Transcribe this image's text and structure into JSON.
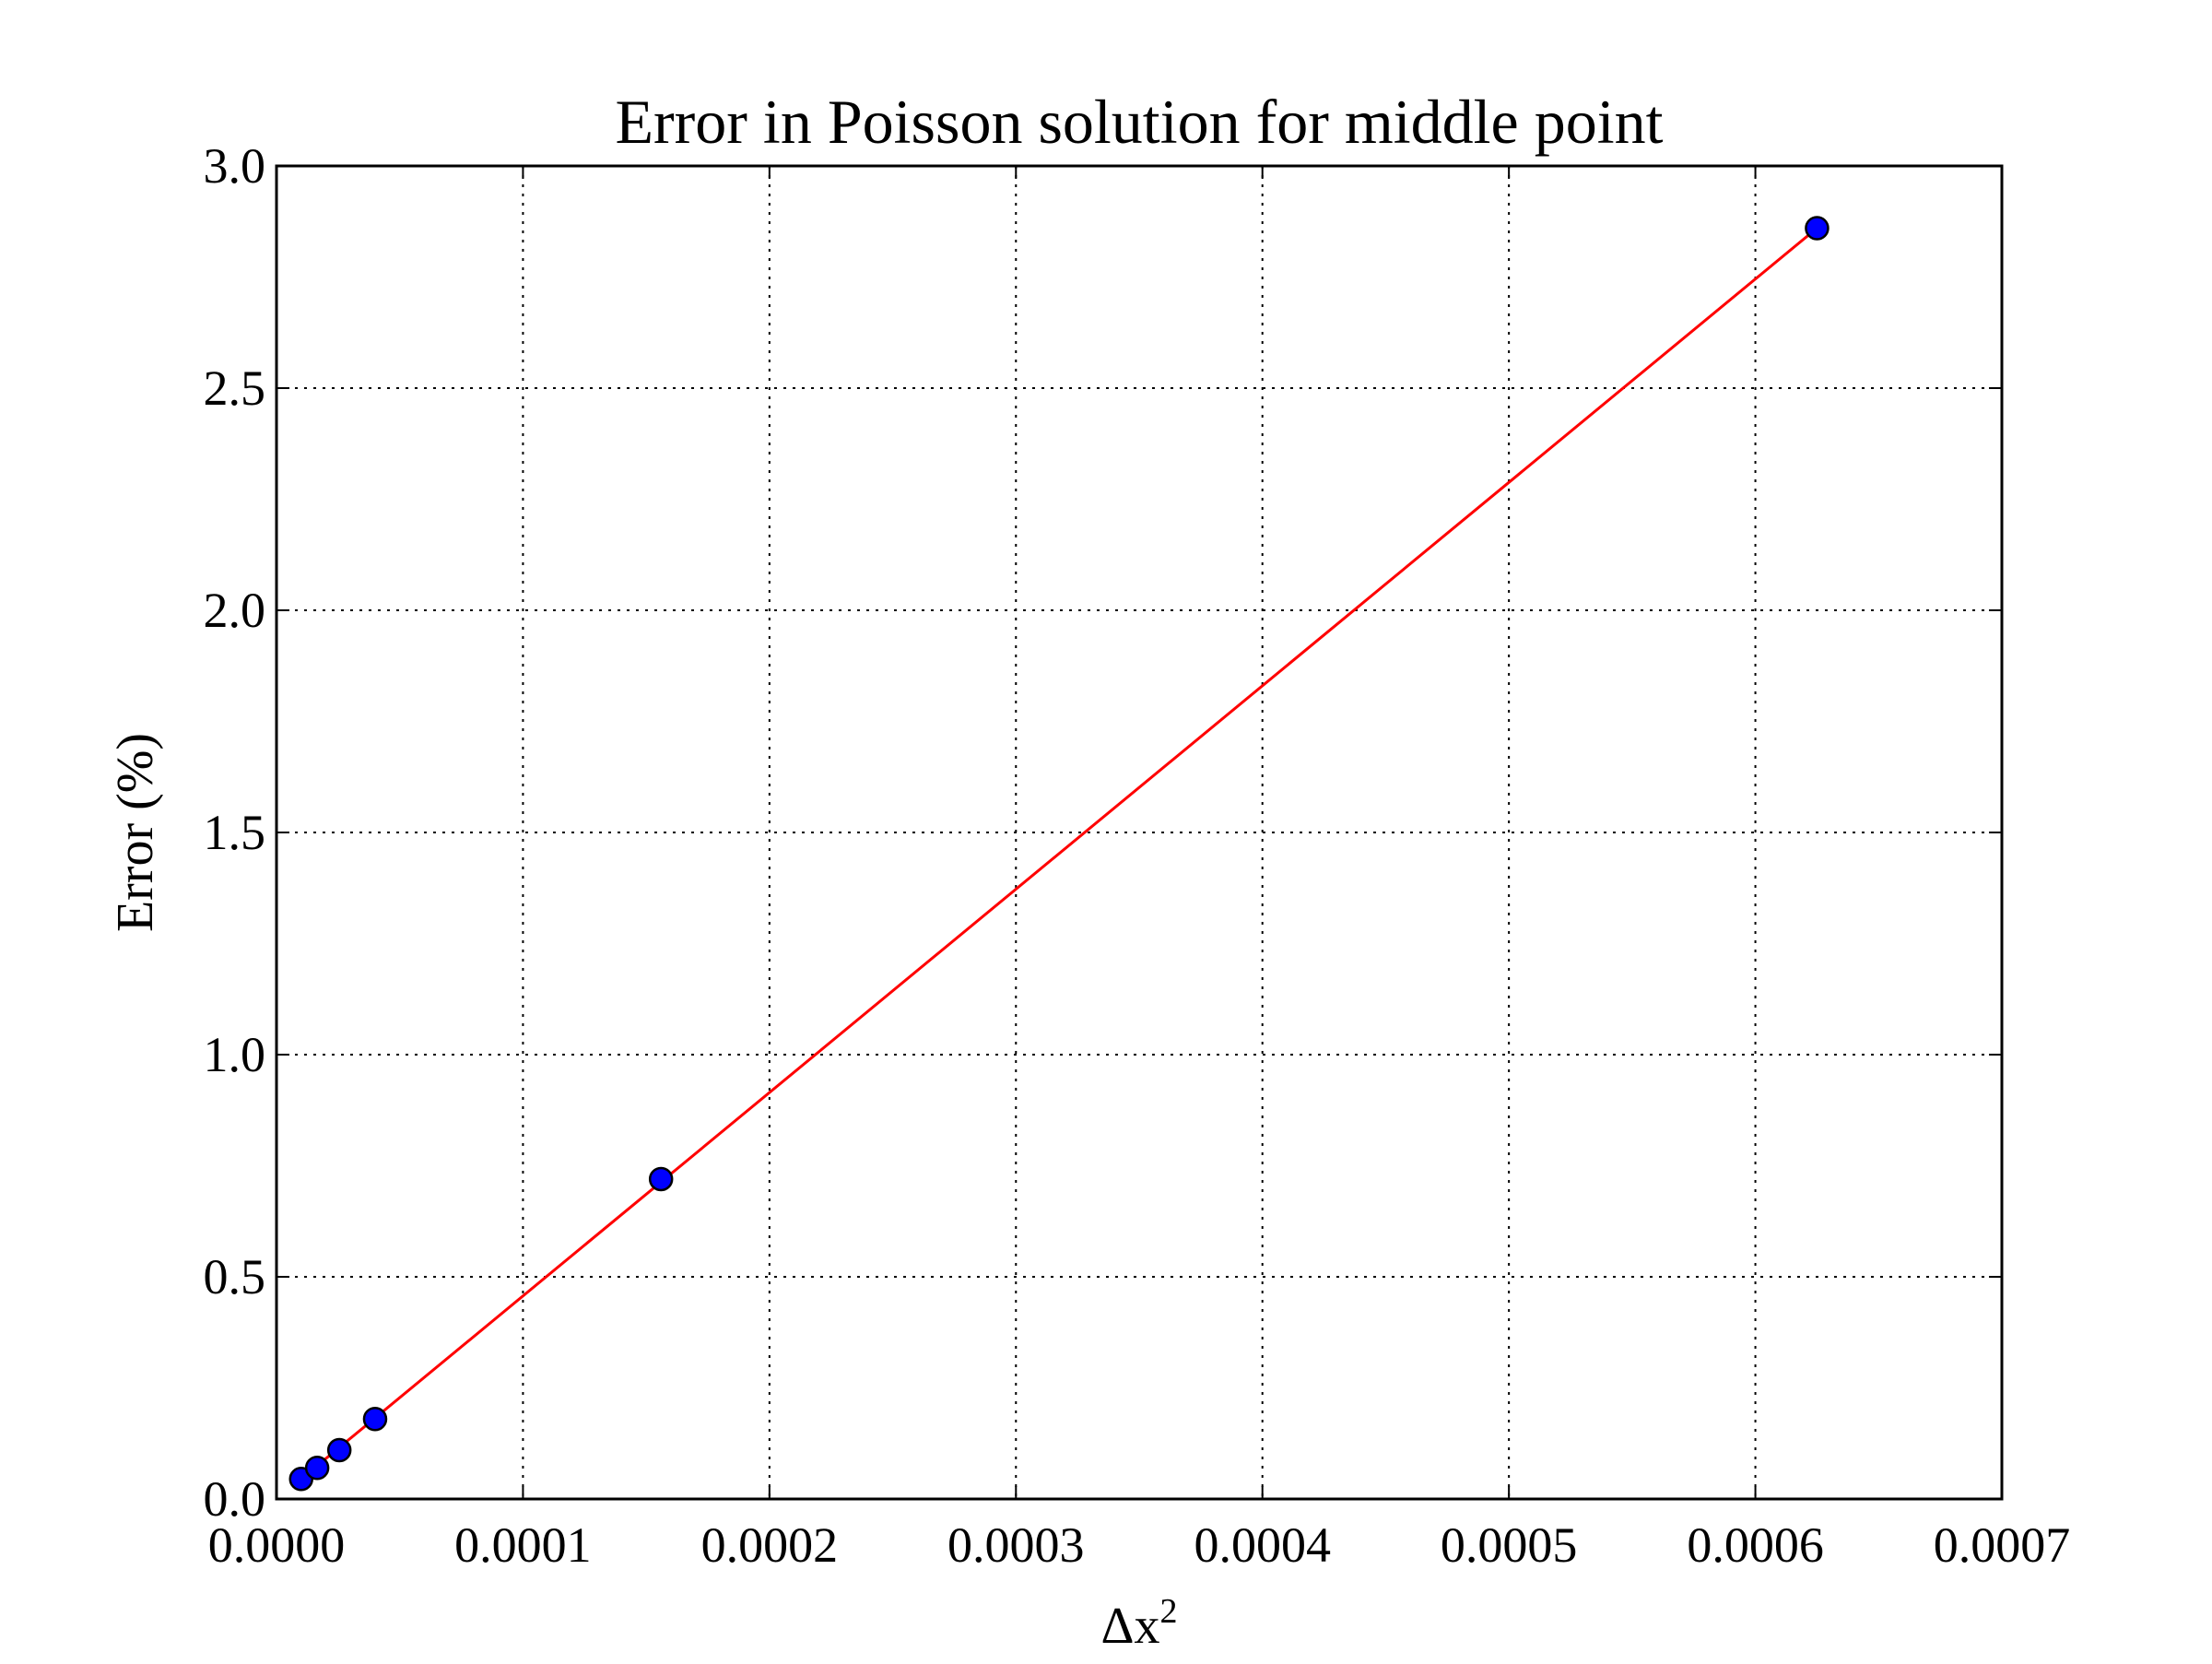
{
  "chart_data": {
    "type": "scatter",
    "title": "Error in Poisson solution for middle point",
    "xlabel": "Δx",
    "xlabel_superscript": "2",
    "ylabel": "Error (%)",
    "xlim": [
      0.0,
      0.0007
    ],
    "ylim": [
      0.0,
      3.0
    ],
    "x_ticks": [
      "0.0000",
      "0.0001",
      "0.0002",
      "0.0003",
      "0.0004",
      "0.0005",
      "0.0006",
      "0.0007"
    ],
    "x_tick_values": [
      0.0,
      0.0001,
      0.0002,
      0.0003,
      0.0004,
      0.0005,
      0.0006,
      0.0007
    ],
    "y_ticks": [
      "0.0",
      "0.5",
      "1.0",
      "1.5",
      "2.0",
      "2.5",
      "3.0"
    ],
    "y_tick_values": [
      0.0,
      0.5,
      1.0,
      1.5,
      2.0,
      2.5,
      3.0
    ],
    "grid": true,
    "series": [
      {
        "kind": "scatter",
        "color": "#0000ff",
        "edge_color": "#000000",
        "x": [
          1e-05,
          1.65e-05,
          2.55e-05,
          4e-05,
          0.000156,
          0.000625
        ],
        "y": [
          0.045,
          0.07,
          0.11,
          0.18,
          0.72,
          2.86
        ]
      },
      {
        "kind": "line",
        "color": "#ff0000",
        "x": [
          1e-05,
          0.000625
        ],
        "y": [
          0.045,
          2.86
        ]
      }
    ]
  }
}
